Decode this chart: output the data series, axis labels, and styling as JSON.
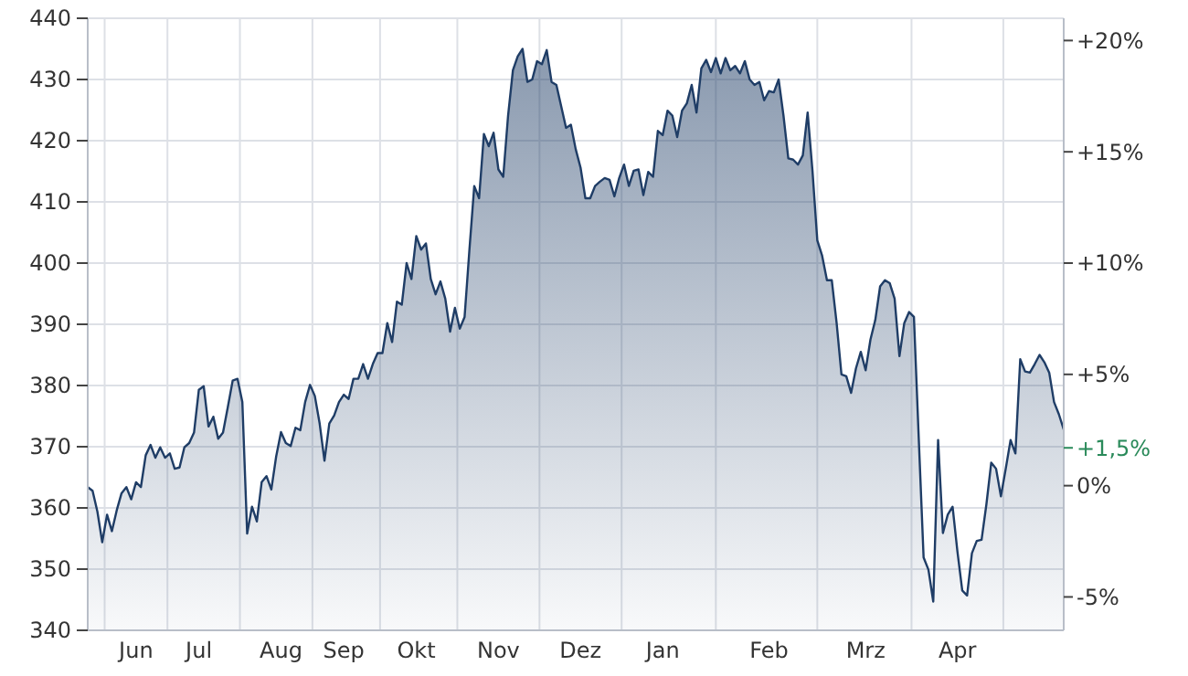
{
  "chart_data": {
    "type": "area",
    "categories": [
      null,
      null,
      null,
      null,
      null,
      null,
      null,
      null,
      null,
      null,
      "Jun",
      null,
      null,
      null,
      null,
      null,
      null,
      null,
      null,
      null,
      null,
      null,
      null,
      "Jul",
      null,
      null,
      null,
      null,
      null,
      null,
      null,
      null,
      null,
      null,
      null,
      null,
      null,
      null,
      null,
      null,
      "Aug",
      null,
      null,
      null,
      null,
      null,
      null,
      null,
      null,
      null,
      null,
      null,
      null,
      "Sep",
      null,
      null,
      null,
      null,
      null,
      null,
      null,
      null,
      null,
      null,
      null,
      null,
      null,
      null,
      "Okt",
      null,
      null,
      null,
      null,
      null,
      null,
      null,
      null,
      null,
      null,
      null,
      null,
      null,
      null,
      null,
      null,
      "Nov",
      null,
      null,
      null,
      null,
      null,
      null,
      null,
      null,
      null,
      null,
      null,
      null,
      null,
      null,
      null,
      null,
      "Dez",
      null,
      null,
      null,
      null,
      null,
      null,
      null,
      null,
      null,
      null,
      null,
      null,
      null,
      null,
      null,
      null,
      "Jan",
      null,
      null,
      null,
      null,
      null,
      null,
      null,
      null,
      null,
      null,
      null,
      null,
      null,
      null,
      null,
      null,
      null,
      null,
      null,
      null,
      null,
      "Feb",
      null,
      null,
      null,
      null,
      null,
      null,
      null,
      null,
      null,
      null,
      null,
      null,
      null,
      null,
      null,
      null,
      null,
      null,
      null,
      "Mrz",
      null,
      null,
      null,
      null,
      null,
      null,
      null,
      null,
      null,
      null,
      null,
      null,
      null,
      null,
      null,
      null,
      null,
      null,
      "Apr",
      null,
      null,
      null,
      null,
      null,
      null,
      null,
      null,
      null,
      null,
      null,
      null,
      null,
      null,
      null,
      null,
      null,
      null,
      null,
      null,
      null,
      null
    ],
    "series": [
      {
        "color": "#1f3d66",
        "values": [
          363.4,
          362.8,
          359.4,
          354.4,
          358.9,
          356.2,
          359.6,
          362.4,
          363.4,
          361.4,
          364.2,
          363.4,
          368.6,
          370.3,
          368.2,
          369.9,
          368.2,
          368.9,
          366.4,
          366.6,
          369.9,
          370.6,
          372.3,
          379.3,
          379.9,
          373.3,
          374.9,
          371.3,
          372.3,
          376.5,
          380.8,
          381.1,
          377.3,
          355.8,
          360.2,
          357.8,
          364.2,
          365.2,
          363.0,
          368.4,
          372.4,
          370.6,
          370.1,
          373.1,
          372.7,
          377.3,
          380.1,
          378.3,
          373.8,
          367.7,
          373.8,
          375.1,
          377.3,
          378.5,
          377.8,
          381.1,
          381.1,
          383.5,
          381.1,
          383.5,
          385.3,
          385.3,
          390.2,
          387.1,
          393.7,
          393.2,
          400.0,
          397.4,
          404.4,
          402.2,
          403.2,
          397.4,
          394.9,
          397.0,
          394.2,
          388.8,
          392.7,
          389.3,
          391.2,
          402.2,
          412.6,
          410.6,
          421.1,
          419.1,
          421.3,
          415.3,
          414.1,
          424.1,
          431.5,
          433.8,
          435.0,
          429.6,
          430.0,
          433.0,
          432.5,
          434.8,
          429.6,
          429.1,
          425.6,
          422.1,
          422.6,
          418.6,
          415.6,
          410.6,
          410.6,
          412.6,
          413.3,
          413.9,
          413.6,
          410.9,
          413.9,
          416.1,
          412.6,
          415.1,
          415.3,
          411.1,
          414.9,
          414.1,
          421.6,
          420.9,
          424.9,
          424.1,
          420.6,
          424.9,
          426.1,
          429.1,
          424.6,
          431.8,
          433.2,
          431.2,
          433.5,
          431.0,
          433.5,
          431.5,
          432.2,
          431.0,
          433.0,
          430.0,
          429.1,
          429.6,
          426.6,
          428.1,
          427.9,
          430.0,
          424.1,
          417.1,
          416.9,
          416.1,
          417.6,
          424.6,
          415.1,
          403.7,
          401.2,
          397.2,
          397.2,
          390.2,
          381.8,
          381.5,
          378.8,
          382.8,
          385.5,
          382.5,
          387.5,
          390.7,
          396.2,
          397.2,
          396.7,
          394.2,
          384.8,
          390.2,
          392.0,
          391.2,
          371.3,
          351.9,
          349.9,
          344.7,
          371.1,
          355.9,
          358.9,
          360.2,
          352.9,
          346.5,
          345.7,
          352.6,
          354.6,
          354.8,
          360.6,
          367.4,
          366.4,
          361.9,
          366.4,
          371.1,
          368.9,
          384.3,
          382.3,
          382.1,
          383.5,
          385.0,
          383.8,
          382.1,
          377.3,
          375.3,
          372.8
        ]
      }
    ],
    "ylim": [
      340,
      440
    ],
    "yticks": [
      340,
      350,
      360,
      370,
      380,
      390,
      400,
      410,
      420,
      430,
      440
    ],
    "y2lim": [
      -6.5,
      21.0
    ],
    "y2ticks": [
      {
        "value": -5,
        "label": "-5%"
      },
      {
        "value": 0,
        "label": "0%"
      },
      {
        "value": 5,
        "label": "+5%"
      },
      {
        "value": 10,
        "label": "+10%"
      },
      {
        "value": 15,
        "label": "+15%"
      },
      {
        "value": 20,
        "label": "+20%"
      }
    ],
    "annotations": [
      "+1,5%"
    ],
    "grid": true
  }
}
